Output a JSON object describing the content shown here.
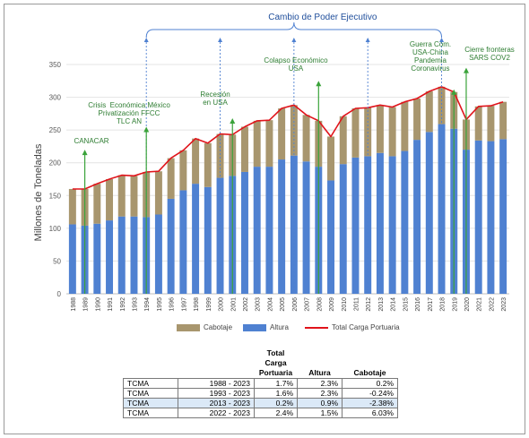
{
  "chart_data": {
    "type": "bar",
    "ylabel": "Millones de Toneladas",
    "ylim": [
      0,
      350
    ],
    "yticks": [
      0,
      50,
      100,
      150,
      200,
      250,
      300,
      350
    ],
    "categories": [
      "1988",
      "1989",
      "1990",
      "1991",
      "1992",
      "1993",
      "1994",
      "1995",
      "1996",
      "1997",
      "1998",
      "1999",
      "2000",
      "2001",
      "2002",
      "2003",
      "2004",
      "2005",
      "2006",
      "2007",
      "2008",
      "2009",
      "2010",
      "2011",
      "2012",
      "2013",
      "2014",
      "2015",
      "2016",
      "2017",
      "2018",
      "2019",
      "2020",
      "2021",
      "2022",
      "2023"
    ],
    "series": [
      {
        "name": "Altura",
        "kind": "stacked-bar",
        "color": "#4f81d1",
        "values": [
          106,
          104,
          107,
          112,
          118,
          118,
          117,
          121,
          145,
          158,
          168,
          163,
          177,
          180,
          186,
          194,
          194,
          205,
          211,
          202,
          194,
          173,
          198,
          208,
          210,
          215,
          210,
          218,
          235,
          247,
          259,
          252,
          220,
          234,
          233,
          236
        ]
      },
      {
        "name": "Cabotaje",
        "kind": "stacked-bar",
        "color": "#a8966e",
        "values": [
          54,
          56,
          61,
          63,
          63,
          62,
          69,
          66,
          62,
          61,
          69,
          67,
          67,
          63,
          69,
          70,
          71,
          78,
          77,
          71,
          70,
          67,
          73,
          75,
          74,
          73,
          75,
          75,
          63,
          62,
          57,
          56,
          46,
          52,
          54,
          57
        ]
      },
      {
        "name": "Total Carga Portuaria",
        "kind": "line",
        "color": "#e0141b",
        "values": [
          160,
          160,
          168,
          175,
          181,
          180,
          186,
          187,
          207,
          219,
          237,
          230,
          244,
          243,
          255,
          264,
          265,
          283,
          288,
          273,
          264,
          240,
          271,
          283,
          284,
          288,
          285,
          293,
          298,
          309,
          316,
          308,
          266,
          286,
          287,
          293
        ]
      }
    ],
    "bracket": {
      "label": "Cambio de Poder Ejecutivo",
      "years": [
        "1994",
        "2000",
        "2006",
        "2012",
        "2018"
      ]
    },
    "events": [
      {
        "year": "1989",
        "lines": [
          "CANACAR"
        ],
        "value": 220
      },
      {
        "year": "1994",
        "lines": [
          "Crisis  Económica México",
          "Privatización FFCC",
          "TLC AN"
        ],
        "value": 255
      },
      {
        "year": "2001",
        "lines": [
          "Recesión",
          "en USA"
        ],
        "value": 268
      },
      {
        "year": "2008",
        "lines": [
          "Colapso Económico",
          "USA"
        ],
        "value": 325
      },
      {
        "year": "2019",
        "lines": [
          "Guerra Com.",
          "USA-China",
          "Pandemia",
          "Coronavirus"
        ],
        "value": 312
      },
      {
        "year": "2020",
        "lines": [
          "Cierre fronteras",
          "SARS COV2"
        ],
        "value": 345
      }
    ],
    "legend": {
      "position": "bottom"
    },
    "colors": {
      "event_arrow": "#3aa33a",
      "event_text": "#2e7d32",
      "bracket": "#4f81d1",
      "bracket_text": "#1f4e9b"
    }
  },
  "table": {
    "headers": [
      "",
      "Total Carga Portuaria",
      "Altura",
      "Cabotaje"
    ],
    "rows": [
      {
        "label": "TCMA",
        "period": "1988  -  2023",
        "total": "1.7%",
        "altura": "2.3%",
        "cabotaje": "0.2%",
        "highlight": false
      },
      {
        "label": "TCMA",
        "period": "1993  -  2023",
        "total": "1.6%",
        "altura": "2.3%",
        "cabotaje": "-0.24%",
        "highlight": false
      },
      {
        "label": "TCMA",
        "period": "2013  -  2023",
        "total": "0.2%",
        "altura": "0.9%",
        "cabotaje": "-2.38%",
        "highlight": true
      },
      {
        "label": "TCMA",
        "period": "2022  -  2023",
        "total": "2.4%",
        "altura": "1.5%",
        "cabotaje": "6.03%",
        "highlight": false
      }
    ]
  }
}
